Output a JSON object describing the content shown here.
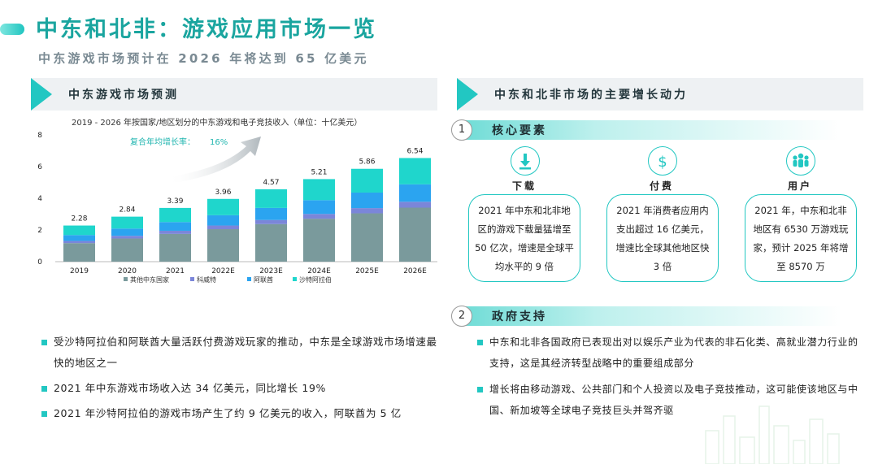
{
  "header": {
    "title": "中东和北非：游戏应用市场一览",
    "subtitle": "中东游戏市场预计在 2026 年将达到 65 亿美元"
  },
  "left": {
    "section_title": "中东游戏市场预测",
    "cagr_label": "复合年均增长率：",
    "cagr_value": "16%",
    "bullets": [
      "受沙特阿拉伯和阿联酋大量活跃付费游戏玩家的推动，中东是全球游戏市场增速最快的地区之一",
      "2021 年中东游戏市场收入达 34 亿美元，同比增长 19%",
      "2021 年沙特阿拉伯的游戏市场产生了约 9 亿美元的收入，阿联酋为 5 亿"
    ]
  },
  "right": {
    "section_title": "中东和北非市场的主要增长动力",
    "sub1": {
      "num": "1",
      "title": "核心要素"
    },
    "cards": [
      {
        "icon": "download-icon",
        "title": "下载",
        "text": "2021 年中东和北非地区的游戏下载量猛增至 50 亿次，增速是全球平均水平的 9 倍"
      },
      {
        "icon": "dollar-icon",
        "title": "付费",
        "text": "2021 年消费者应用内支出超过 16 亿美元，增速比全球其他地区快 3 倍"
      },
      {
        "icon": "users-icon",
        "title": "用户",
        "text": "2021 年，中东和北非地区有 6530 万游戏玩家，预计 2025 年将增至 8570 万"
      }
    ],
    "sub2": {
      "num": "2",
      "title": "政府支持"
    },
    "bullets": [
      "中东和北非各国政府已表现出对以娱乐产业为代表的非石化类、高就业潜力行业的支持，这是其经济转型战略中的重要组成部分",
      "增长将由移动游戏、公共部门和个人投资以及电子竞技推动，这可能使该地区与中国、新加坡等全球电子竞技巨头并驾齐驱"
    ]
  },
  "colors": {
    "accent": "#22c7c2",
    "title": "#1aa59f",
    "series": [
      "#7a9a9c",
      "#7b86d9",
      "#2ba4f0",
      "#1fd6cc"
    ]
  },
  "chart_data": {
    "type": "bar",
    "stacked": true,
    "title": "2019 - 2026 年按国家/地区划分的中东游戏和电子竞技收入（单位：十亿美元）",
    "categories": [
      "2019",
      "2020",
      "2021",
      "2022E",
      "2023E",
      "2024E",
      "2025E",
      "2026E"
    ],
    "totals": [
      "2.28",
      "2.84",
      "3.39",
      "3.96",
      "4.57",
      "5.21",
      "5.86",
      "6.54"
    ],
    "ylim": [
      0,
      8
    ],
    "yticks": [
      "0",
      "2",
      "4",
      "6",
      "8"
    ],
    "series": [
      {
        "name": "其他中东国家",
        "values": [
          1.17,
          1.46,
          1.75,
          2.05,
          2.37,
          2.71,
          3.05,
          3.41
        ]
      },
      {
        "name": "科威特",
        "values": [
          0.14,
          0.17,
          0.2,
          0.23,
          0.26,
          0.3,
          0.33,
          0.37
        ]
      },
      {
        "name": "阿联酋",
        "values": [
          0.37,
          0.46,
          0.55,
          0.65,
          0.76,
          0.87,
          0.98,
          1.1
        ]
      },
      {
        "name": "沙特阿拉伯",
        "values": [
          0.6,
          0.75,
          0.89,
          1.03,
          1.18,
          1.33,
          1.5,
          1.66
        ]
      }
    ],
    "grid": false,
    "legend": "bottom"
  }
}
